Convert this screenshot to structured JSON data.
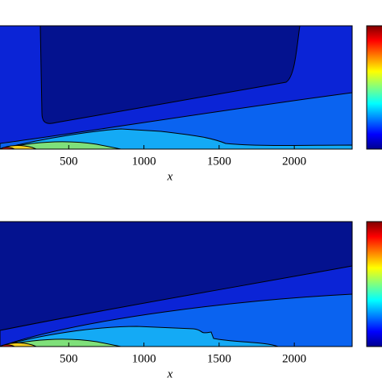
{
  "chart_data": [
    {
      "type": "contour",
      "xlabel": "x",
      "xlim": [
        0,
        2385
      ],
      "xticks": [
        500,
        1000,
        1500,
        2000
      ]
    },
    {
      "type": "contour",
      "xlabel": "x",
      "xlim": [
        0,
        2385
      ],
      "xticks": [
        500,
        1000,
        1500,
        2000
      ]
    }
  ]
}
